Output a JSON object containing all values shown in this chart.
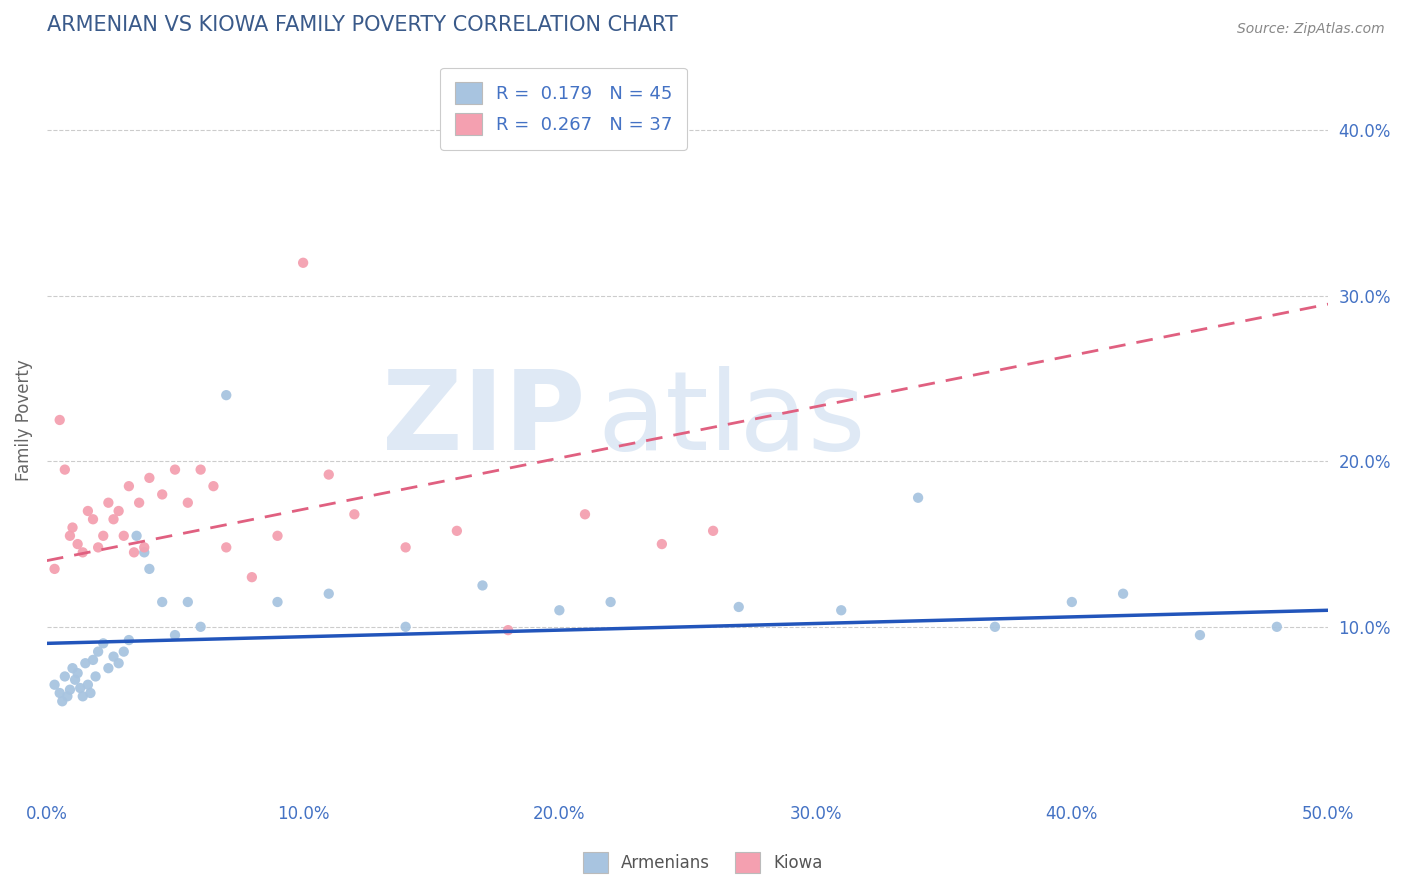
{
  "title": "ARMENIAN VS KIOWA FAMILY POVERTY CORRELATION CHART",
  "source": "Source: ZipAtlas.com",
  "ylabel": "Family Poverty",
  "xlim": [
    0.0,
    0.5
  ],
  "ylim": [
    0.0,
    0.45
  ],
  "xticks": [
    0.0,
    0.1,
    0.2,
    0.3,
    0.4,
    0.5
  ],
  "xtick_labels": [
    "0.0%",
    "10.0%",
    "20.0%",
    "30.0%",
    "40.0%",
    "50.0%"
  ],
  "yticks_right": [
    0.1,
    0.2,
    0.3,
    0.4
  ],
  "ytick_labels_right": [
    "10.0%",
    "20.0%",
    "30.0%",
    "40.0%"
  ],
  "armenians_color": "#a8c4e0",
  "kiowa_color": "#f4a0b0",
  "armenians_line_color": "#2255bb",
  "kiowa_line_color": "#e06080",
  "legend_R_armenians": "0.179",
  "legend_N_armenians": "45",
  "legend_R_kiowa": "0.267",
  "legend_N_kiowa": "37",
  "watermark_ZIP": "ZIP",
  "watermark_atlas": "atlas",
  "background_color": "#ffffff",
  "grid_color": "#cccccc",
  "title_color": "#3a5a8a",
  "source_color": "#888888",
  "tick_color": "#4472c4",
  "armenians_x": [
    0.003,
    0.005,
    0.006,
    0.007,
    0.008,
    0.009,
    0.01,
    0.011,
    0.012,
    0.013,
    0.014,
    0.015,
    0.016,
    0.017,
    0.018,
    0.019,
    0.02,
    0.022,
    0.024,
    0.026,
    0.028,
    0.03,
    0.032,
    0.035,
    0.038,
    0.04,
    0.045,
    0.05,
    0.055,
    0.06,
    0.07,
    0.09,
    0.11,
    0.14,
    0.17,
    0.2,
    0.22,
    0.27,
    0.31,
    0.34,
    0.37,
    0.4,
    0.42,
    0.45,
    0.48
  ],
  "armenians_y": [
    0.065,
    0.06,
    0.055,
    0.07,
    0.058,
    0.062,
    0.075,
    0.068,
    0.072,
    0.063,
    0.058,
    0.078,
    0.065,
    0.06,
    0.08,
    0.07,
    0.085,
    0.09,
    0.075,
    0.082,
    0.078,
    0.085,
    0.092,
    0.155,
    0.145,
    0.135,
    0.115,
    0.095,
    0.115,
    0.1,
    0.24,
    0.115,
    0.12,
    0.1,
    0.125,
    0.11,
    0.115,
    0.112,
    0.11,
    0.178,
    0.1,
    0.115,
    0.12,
    0.095,
    0.1
  ],
  "kiowa_x": [
    0.003,
    0.005,
    0.007,
    0.009,
    0.01,
    0.012,
    0.014,
    0.016,
    0.018,
    0.02,
    0.022,
    0.024,
    0.026,
    0.028,
    0.03,
    0.032,
    0.034,
    0.036,
    0.038,
    0.04,
    0.045,
    0.05,
    0.055,
    0.06,
    0.065,
    0.07,
    0.08,
    0.09,
    0.1,
    0.11,
    0.12,
    0.14,
    0.16,
    0.18,
    0.21,
    0.24,
    0.26
  ],
  "kiowa_y": [
    0.135,
    0.225,
    0.195,
    0.155,
    0.16,
    0.15,
    0.145,
    0.17,
    0.165,
    0.148,
    0.155,
    0.175,
    0.165,
    0.17,
    0.155,
    0.185,
    0.145,
    0.175,
    0.148,
    0.19,
    0.18,
    0.195,
    0.175,
    0.195,
    0.185,
    0.148,
    0.13,
    0.155,
    0.32,
    0.192,
    0.168,
    0.148,
    0.158,
    0.098,
    0.168,
    0.15,
    0.158
  ],
  "arm_trend_x0": 0.0,
  "arm_trend_y0": 0.09,
  "arm_trend_x1": 0.5,
  "arm_trend_y1": 0.11,
  "kiowa_trend_x0": 0.0,
  "kiowa_trend_y0": 0.14,
  "kiowa_trend_x1": 0.5,
  "kiowa_trend_y1": 0.295
}
